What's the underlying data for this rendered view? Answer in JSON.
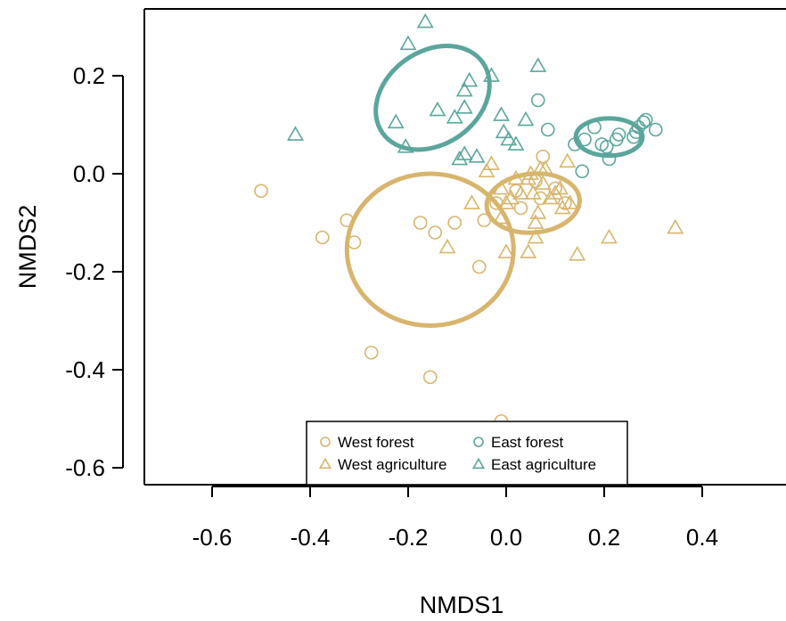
{
  "chart_data": {
    "type": "scatter",
    "xlabel": "NMDS1",
    "ylabel": "NMDS2",
    "xlim": [
      -0.74,
      0.57
    ],
    "ylim": [
      -0.64,
      0.33
    ],
    "xticks": [
      "-0.6",
      "-0.4",
      "-0.2",
      "0.0",
      "0.2",
      "0.4"
    ],
    "yticks": [
      "0.2",
      "0.0",
      "-0.2",
      "-0.4",
      "-0.6"
    ],
    "colors": {
      "west": "#d7b56d",
      "east": "#5ba69b"
    },
    "legend": {
      "position": "bottom-center",
      "entries": [
        {
          "label": "West forest",
          "series": "west_forest"
        },
        {
          "label": "West agriculture",
          "series": "west_agriculture"
        },
        {
          "label": "East forest",
          "series": "east_forest"
        },
        {
          "label": "East agriculture",
          "series": "east_agriculture"
        }
      ]
    },
    "series": [
      {
        "key": "west_forest",
        "marker": "circle",
        "color": "#d7b56d",
        "points": [
          [
            -0.5,
            -0.035
          ],
          [
            -0.375,
            -0.13
          ],
          [
            -0.325,
            -0.095
          ],
          [
            -0.31,
            -0.14
          ],
          [
            -0.275,
            -0.365
          ],
          [
            -0.175,
            -0.1
          ],
          [
            -0.155,
            -0.415
          ],
          [
            -0.145,
            -0.12
          ],
          [
            -0.105,
            -0.1
          ],
          [
            -0.055,
            -0.19
          ],
          [
            -0.045,
            -0.095
          ],
          [
            -0.01,
            -0.505
          ],
          [
            -0.02,
            -0.06
          ],
          [
            0.02,
            -0.035
          ],
          [
            0.06,
            -0.015
          ],
          [
            0.075,
            0.035
          ],
          [
            0.1,
            -0.03
          ],
          [
            0.12,
            -0.06
          ],
          [
            0.03,
            -0.07
          ],
          [
            0.07,
            -0.05
          ]
        ]
      },
      {
        "key": "west_agriculture",
        "marker": "triangle",
        "color": "#d7b56d",
        "points": [
          [
            -0.12,
            -0.15
          ],
          [
            -0.07,
            -0.06
          ],
          [
            -0.04,
            0.005
          ],
          [
            -0.03,
            0.02
          ],
          [
            -0.01,
            -0.03
          ],
          [
            0.0,
            -0.06
          ],
          [
            0.01,
            -0.05
          ],
          [
            0.02,
            -0.01
          ],
          [
            0.03,
            -0.04
          ],
          [
            0.045,
            -0.01
          ],
          [
            0.05,
            0.0
          ],
          [
            0.055,
            -0.04
          ],
          [
            0.06,
            -0.1
          ],
          [
            0.065,
            -0.08
          ],
          [
            0.07,
            0.01
          ],
          [
            0.075,
            -0.02
          ],
          [
            0.08,
            0.01
          ],
          [
            0.09,
            -0.05
          ],
          [
            0.1,
            -0.04
          ],
          [
            0.11,
            -0.03
          ],
          [
            0.115,
            -0.07
          ],
          [
            0.125,
            0.025
          ],
          [
            0.13,
            -0.06
          ],
          [
            0.045,
            -0.16
          ],
          [
            0.06,
            -0.13
          ],
          [
            0.0,
            -0.16
          ],
          [
            -0.01,
            -0.09
          ],
          [
            0.145,
            -0.165
          ],
          [
            0.21,
            -0.13
          ],
          [
            0.345,
            -0.11
          ]
        ]
      },
      {
        "key": "east_forest",
        "marker": "circle",
        "color": "#5ba69b",
        "points": [
          [
            0.065,
            0.15
          ],
          [
            0.085,
            0.09
          ],
          [
            0.14,
            0.06
          ],
          [
            0.155,
            0.005
          ],
          [
            0.16,
            0.07
          ],
          [
            0.18,
            0.095
          ],
          [
            0.195,
            0.06
          ],
          [
            0.205,
            0.055
          ],
          [
            0.21,
            0.03
          ],
          [
            0.225,
            0.07
          ],
          [
            0.23,
            0.08
          ],
          [
            0.26,
            0.075
          ],
          [
            0.265,
            0.085
          ],
          [
            0.27,
            0.095
          ],
          [
            0.28,
            0.105
          ],
          [
            0.285,
            0.11
          ],
          [
            0.305,
            0.09
          ]
        ]
      },
      {
        "key": "east_agriculture",
        "marker": "triangle",
        "color": "#5ba69b",
        "points": [
          [
            -0.43,
            0.08
          ],
          [
            -0.2,
            0.265
          ],
          [
            -0.165,
            0.31
          ],
          [
            -0.225,
            0.105
          ],
          [
            -0.205,
            0.055
          ],
          [
            -0.14,
            0.13
          ],
          [
            -0.105,
            0.115
          ],
          [
            -0.085,
            0.17
          ],
          [
            -0.075,
            0.19
          ],
          [
            -0.085,
            0.135
          ],
          [
            -0.095,
            0.03
          ],
          [
            -0.085,
            0.04
          ],
          [
            -0.06,
            0.035
          ],
          [
            -0.03,
            0.2
          ],
          [
            -0.01,
            0.12
          ],
          [
            -0.005,
            0.085
          ],
          [
            0.005,
            0.07
          ],
          [
            0.02,
            0.06
          ],
          [
            0.04,
            0.11
          ],
          [
            0.065,
            0.22
          ]
        ]
      }
    ],
    "ellipses": [
      {
        "series": "west_forest",
        "color": "#d7b56d",
        "cx": -0.155,
        "cy": -0.155,
        "rx": 0.17,
        "ry": 0.155,
        "rotation": 0
      },
      {
        "series": "west_agriculture",
        "color": "#d7b56d",
        "cx": 0.055,
        "cy": -0.06,
        "rx": 0.095,
        "ry": 0.06,
        "rotation": -5
      },
      {
        "series": "east_forest",
        "color": "#5ba69b",
        "cx": 0.21,
        "cy": 0.075,
        "rx": 0.068,
        "ry": 0.038,
        "rotation": 0
      },
      {
        "series": "east_agriculture",
        "color": "#5ba69b",
        "cx": -0.15,
        "cy": 0.155,
        "rx": 0.125,
        "ry": 0.095,
        "rotation": -35
      }
    ]
  }
}
